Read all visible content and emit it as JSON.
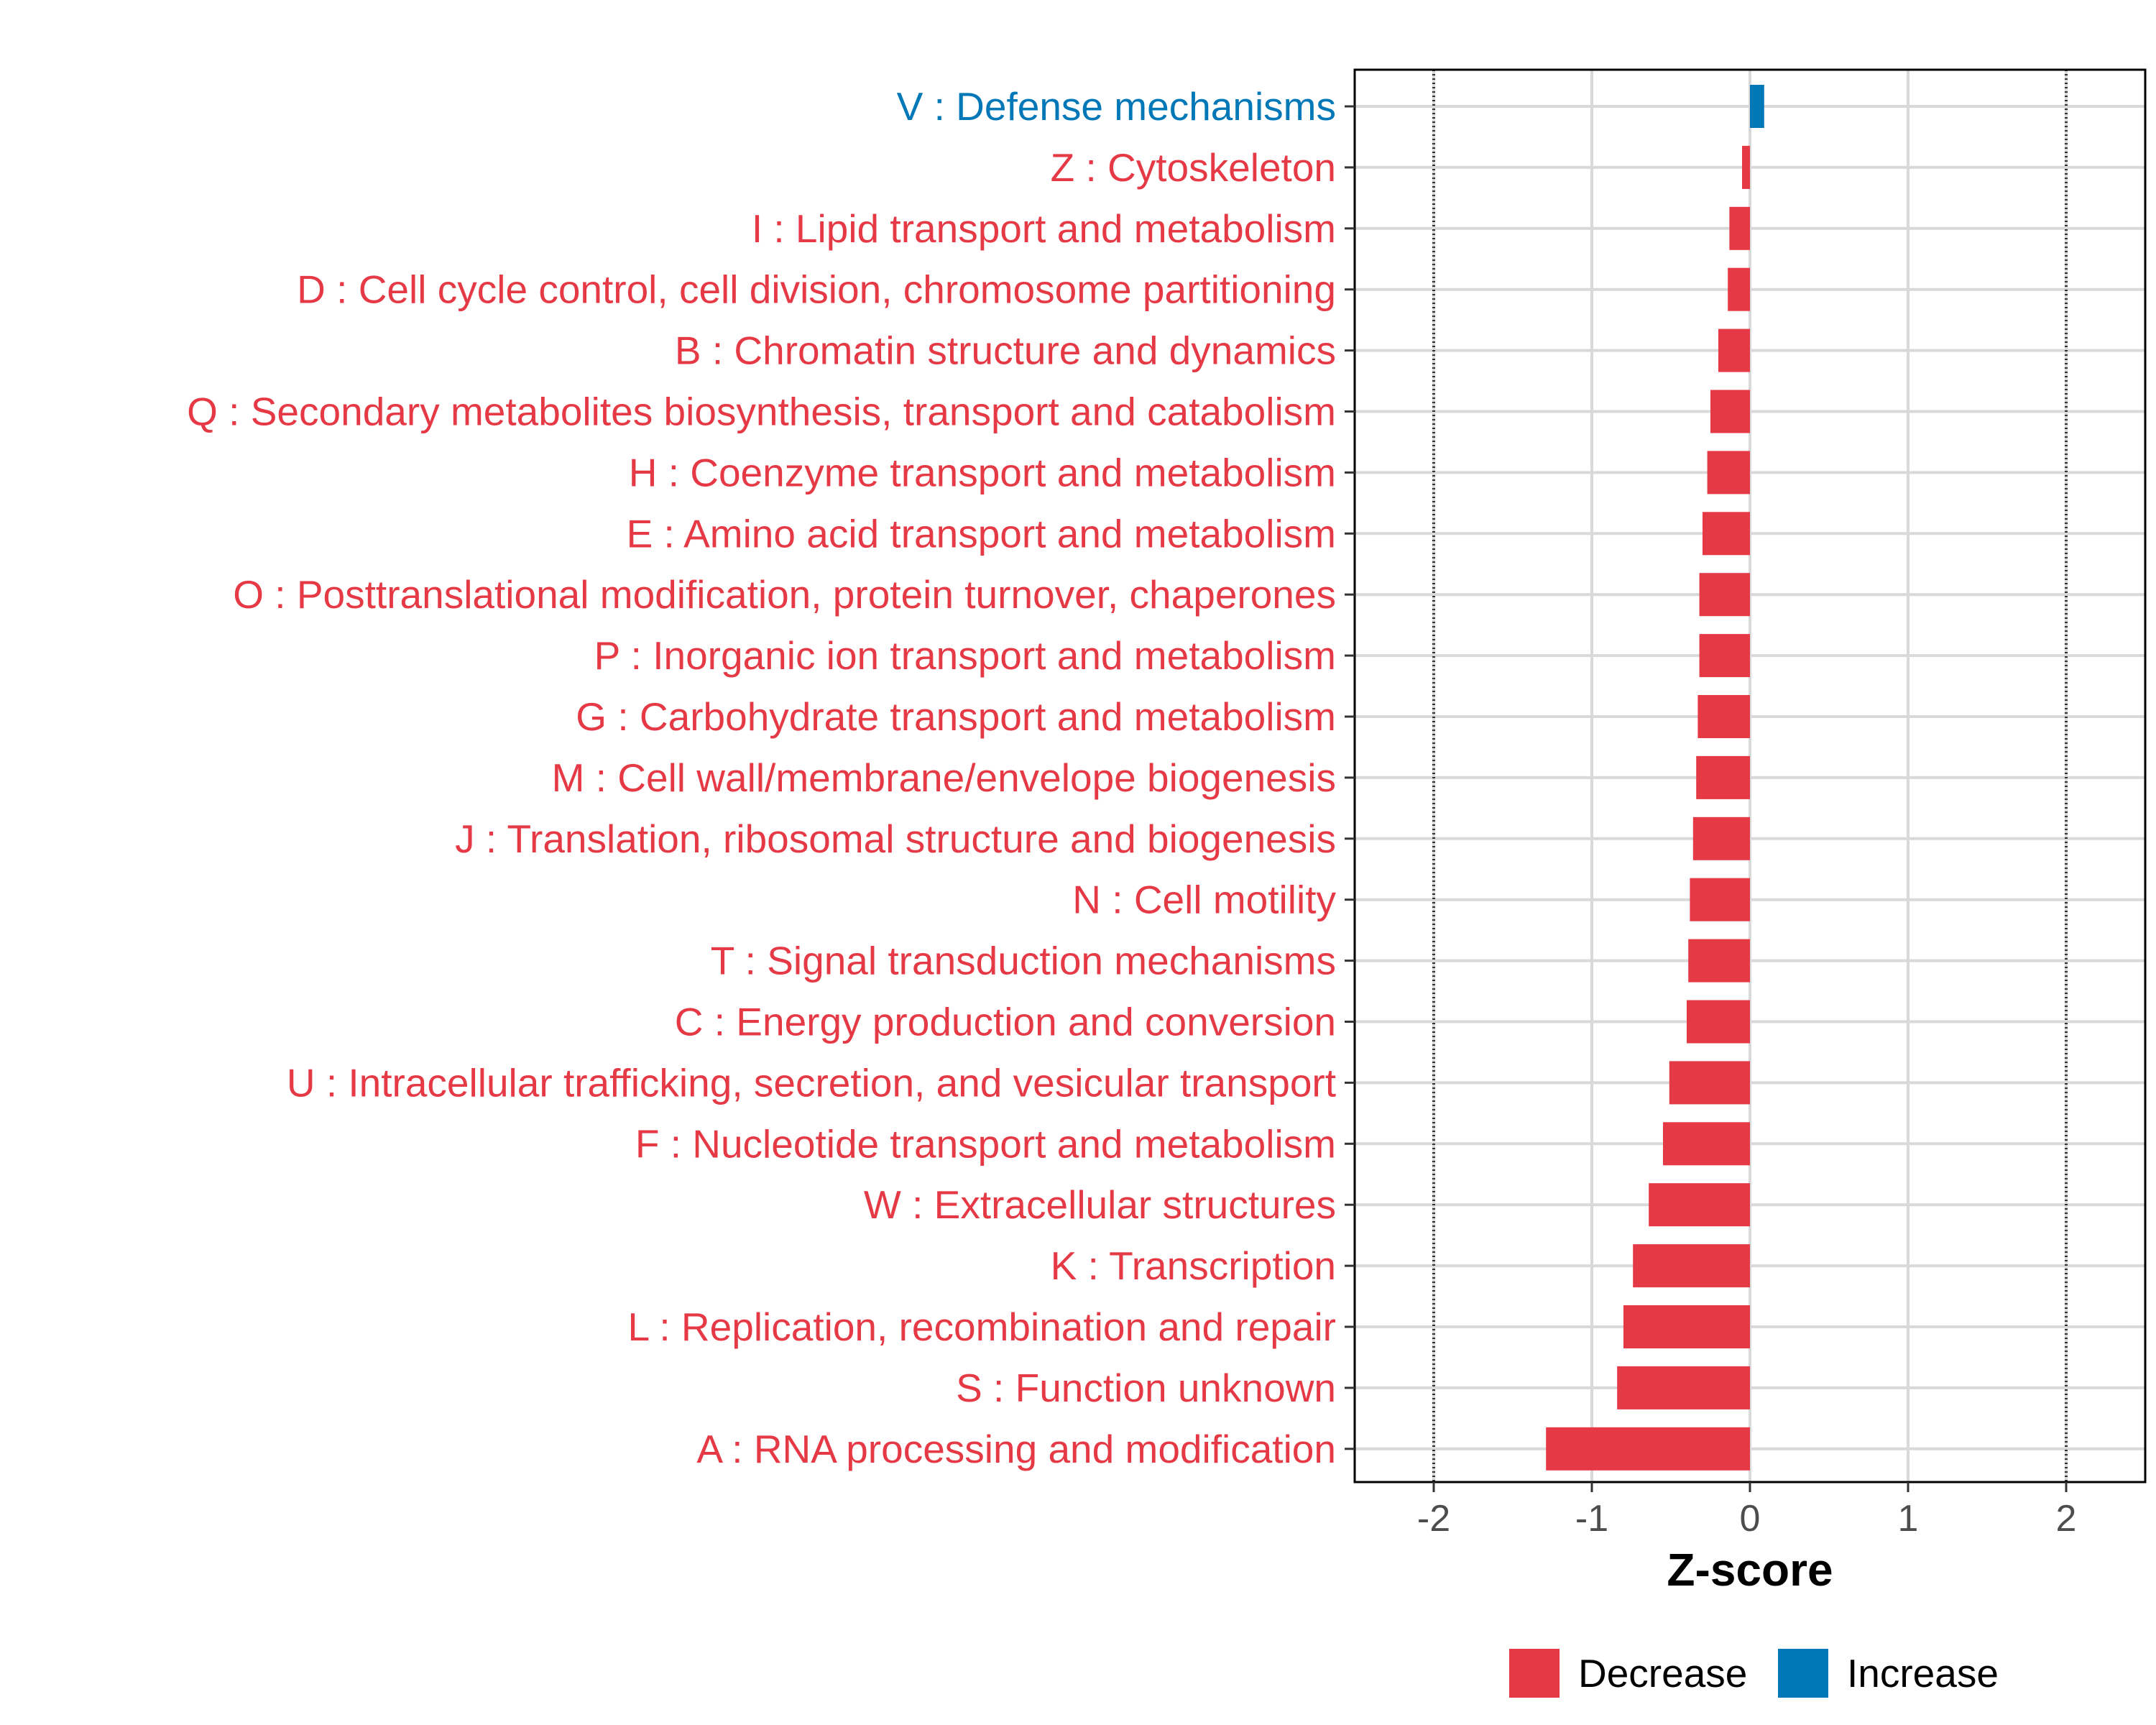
{
  "chart_data": {
    "type": "bar",
    "orientation": "horizontal",
    "xlabel": "Z-score",
    "ylabel": "",
    "xlim": [
      -2.5,
      2.5
    ],
    "xticks": [
      -2,
      -1,
      0,
      1,
      2
    ],
    "tick_labels": [
      "-2",
      "-1",
      "0",
      "1",
      "2"
    ],
    "reference_lines": [
      -2,
      2
    ],
    "grid": true,
    "colors": {
      "Decrease": "#E63946",
      "Increase": "#0077B6"
    },
    "legend": {
      "position": "bottom",
      "items": [
        {
          "label": "Decrease",
          "color": "#E63946"
        },
        {
          "label": "Increase",
          "color": "#0077B6"
        }
      ]
    },
    "categories": [
      "V : Defense mechanisms",
      "Z : Cytoskeleton",
      "I : Lipid transport and metabolism",
      "D : Cell cycle control, cell division, chromosome partitioning",
      "B : Chromatin structure and dynamics",
      "Q : Secondary metabolites biosynthesis, transport and catabolism",
      "H : Coenzyme transport and metabolism",
      "E : Amino acid transport and metabolism",
      "O : Posttranslational modification, protein turnover, chaperones",
      "P : Inorganic ion transport and metabolism",
      "G : Carbohydrate transport and metabolism",
      "M : Cell wall/membrane/envelope biogenesis",
      "J : Translation, ribosomal structure and biogenesis",
      "N : Cell motility",
      "T : Signal transduction mechanisms",
      "C : Energy production and conversion",
      "U : Intracellular trafficking, secretion, and vesicular transport",
      "F : Nucleotide transport and metabolism",
      "W : Extracellular structures",
      "K : Transcription",
      "L : Replication, recombination and repair",
      "S : Function unknown",
      "A : RNA processing and modification"
    ],
    "values": [
      0.09,
      -0.05,
      -0.13,
      -0.14,
      -0.2,
      -0.25,
      -0.27,
      -0.3,
      -0.32,
      -0.32,
      -0.33,
      -0.34,
      -0.36,
      -0.38,
      -0.39,
      -0.4,
      -0.51,
      -0.55,
      -0.64,
      -0.74,
      -0.8,
      -0.84,
      -1.29
    ],
    "groups": [
      "Increase",
      "Decrease",
      "Decrease",
      "Decrease",
      "Decrease",
      "Decrease",
      "Decrease",
      "Decrease",
      "Decrease",
      "Decrease",
      "Decrease",
      "Decrease",
      "Decrease",
      "Decrease",
      "Decrease",
      "Decrease",
      "Decrease",
      "Decrease",
      "Decrease",
      "Decrease",
      "Decrease",
      "Decrease",
      "Decrease"
    ]
  }
}
